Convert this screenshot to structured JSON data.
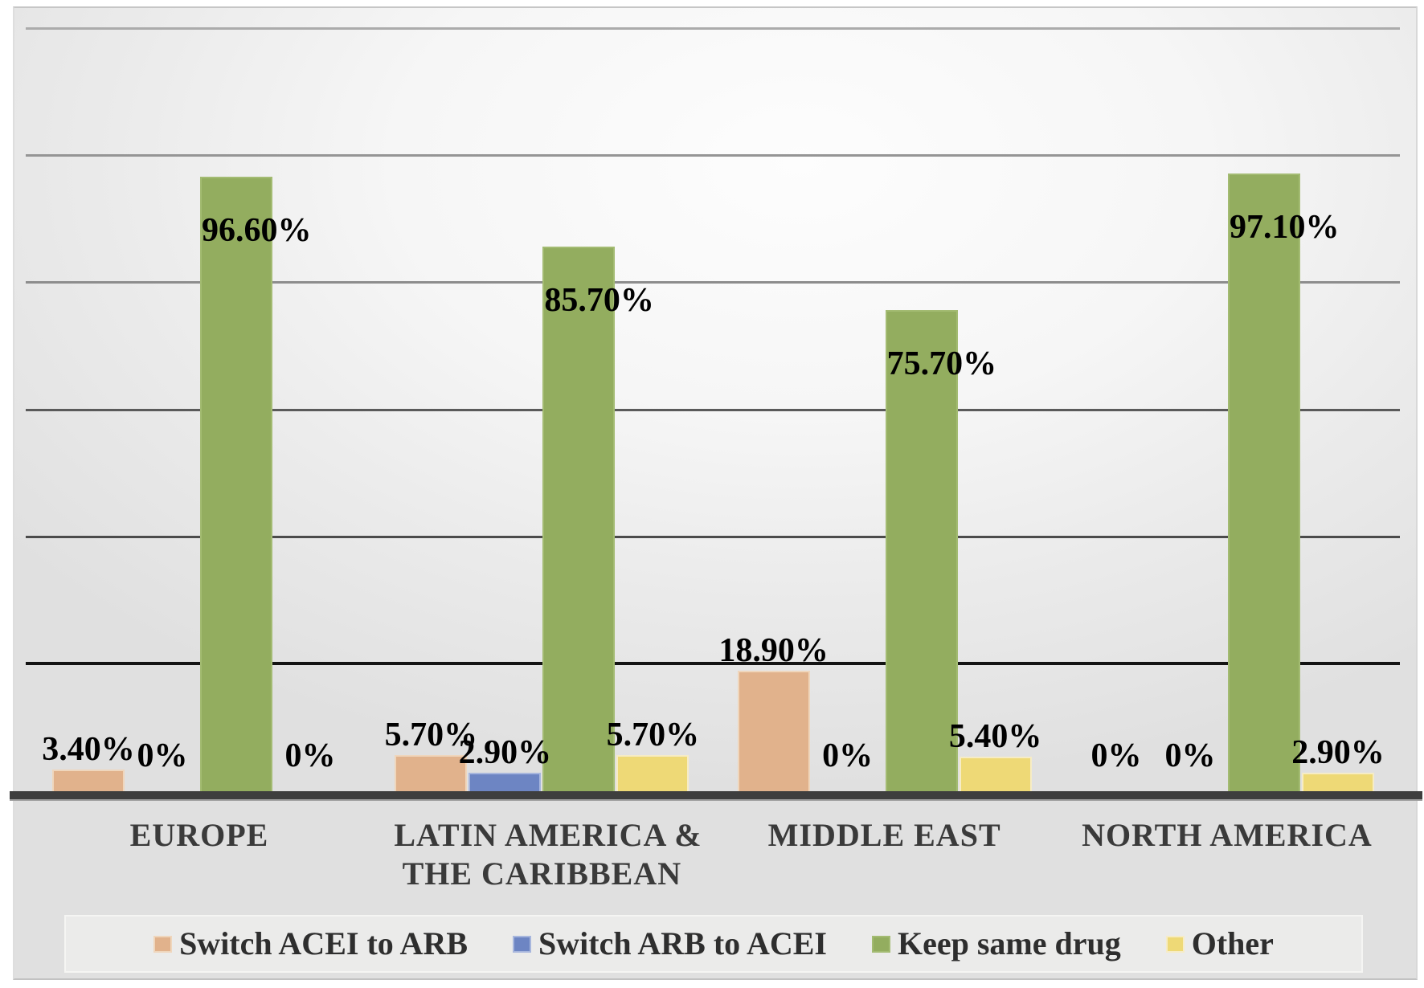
{
  "chart_data": {
    "type": "bar",
    "title": "",
    "xlabel": "",
    "ylabel": "",
    "ylim": [
      0,
      120
    ],
    "gridline_step": 20,
    "grid": true,
    "legend_position": "bottom",
    "categories": [
      "EUROPE",
      "LATIN AMERICA & THE CARIBBEAN",
      "MIDDLE EAST",
      "NORTH AMERICA"
    ],
    "category_label_lines": [
      [
        "EUROPE"
      ],
      [
        "LATIN AMERICA &",
        "THE CARIBBEAN"
      ],
      [
        "MIDDLE EAST"
      ],
      [
        "NORTH AMERICA"
      ]
    ],
    "series": [
      {
        "name": "Switch ACEI to ARB",
        "color": "#e1b28c",
        "border_color": "#efd6bc",
        "values": [
          3.4,
          5.7,
          18.9,
          0
        ]
      },
      {
        "name": "Switch ARB to ACEI",
        "color": "#6d85c3",
        "border_color": "#a7b6dd",
        "values": [
          0,
          2.9,
          0,
          0
        ]
      },
      {
        "name": "Keep same drug",
        "color": "#93ad5f",
        "border_color": "#a3bb72",
        "values": [
          96.6,
          85.7,
          75.7,
          97.1
        ]
      },
      {
        "name": "Other",
        "color": "#eed976",
        "border_color": "#f6ecc6",
        "values": [
          0,
          5.7,
          5.4,
          2.9
        ]
      }
    ],
    "value_labels": [
      [
        {
          "text": "3.40%",
          "pos": "above"
        },
        {
          "text": "0%",
          "pos": "zero"
        },
        {
          "text": "96.60%",
          "pos": "inside"
        },
        {
          "text": "0%",
          "pos": "zero"
        }
      ],
      [
        {
          "text": "5.70%",
          "pos": "above"
        },
        {
          "text": "2.90%",
          "pos": "above"
        },
        {
          "text": "85.70%",
          "pos": "inside"
        },
        {
          "text": "5.70%",
          "pos": "above"
        }
      ],
      [
        {
          "text": "18.90%",
          "pos": "above"
        },
        {
          "text": "0%",
          "pos": "zero"
        },
        {
          "text": "75.70%",
          "pos": "inside"
        },
        {
          "text": "5.40%",
          "pos": "above"
        }
      ],
      [
        {
          "text": "0%",
          "pos": "zero"
        },
        {
          "text": "0%",
          "pos": "zero"
        },
        {
          "text": "97.10%",
          "pos": "inside"
        },
        {
          "text": "2.90%",
          "pos": "above"
        }
      ]
    ],
    "gridlines": [
      {
        "pct": 120,
        "color": "#ababab"
      },
      {
        "pct": 100,
        "color": "#959595"
      },
      {
        "pct": 80,
        "color": "#8d8d8d"
      },
      {
        "pct": 60,
        "color": "#5a5a5a"
      },
      {
        "pct": 40,
        "color": "#4b4b4b"
      },
      {
        "pct": 20,
        "color": "#141414"
      }
    ],
    "axis_line_color": "#3e3e3e",
    "plot_background": "#f3f3f3",
    "label_text_color": "#000000",
    "category_text_color": "#3a3a3a"
  }
}
